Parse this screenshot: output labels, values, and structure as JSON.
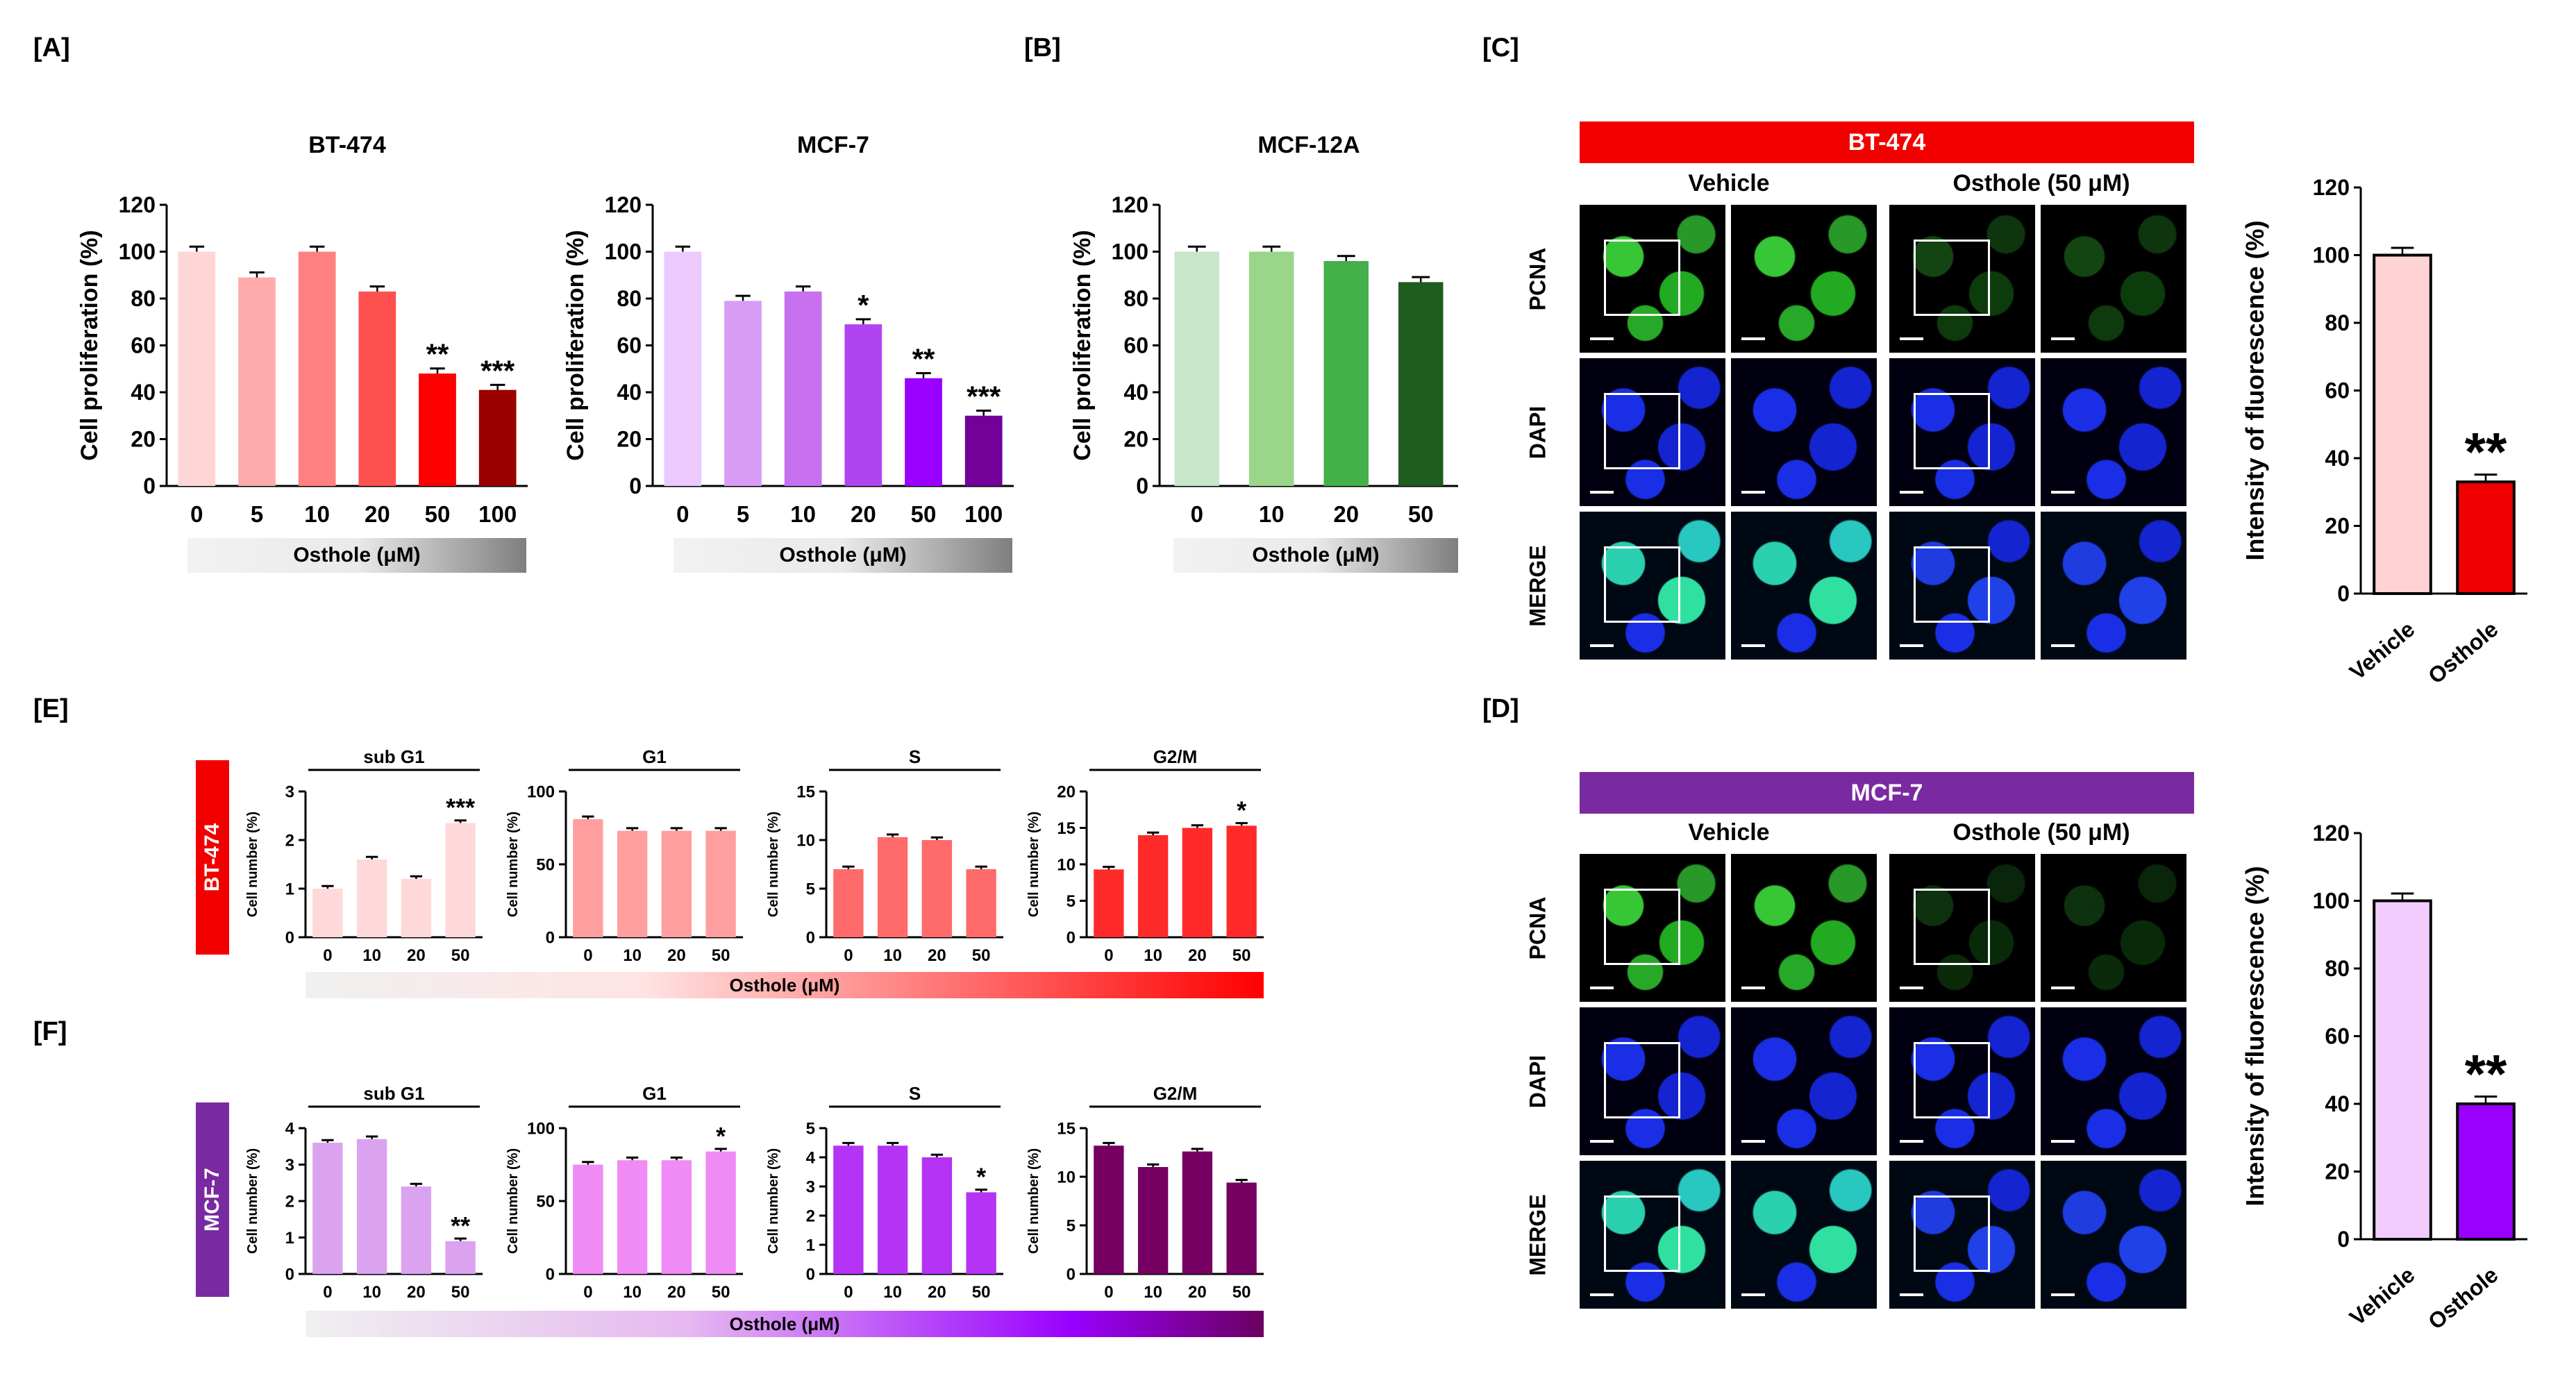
{
  "panels": {
    "A": "[A]",
    "B": "[B]",
    "C": "[C]",
    "D": "[D]",
    "E": "[E]",
    "F": "[F]"
  },
  "colors": {
    "bt474_banner": "#f20000",
    "mcf7_banner": "#7a2aa0",
    "bt474_bars": [
      "#ffd6d6",
      "#ffabab",
      "#ff8080",
      "#ff5050",
      "#ff0000",
      "#990000"
    ],
    "mcf7_bars": [
      "#ecc9ff",
      "#d99cf4",
      "#c770f0",
      "#b044f0",
      "#9900ff",
      "#730099"
    ],
    "mcf12a_bars": [
      "#c8e6c8",
      "#99d68a",
      "#44b04a",
      "#1f5c1f"
    ],
    "cycle_bt474": [
      "#ffd9d9",
      "#ff9e9e",
      "#ff6a6a",
      "#ff2a2a"
    ],
    "cycle_mcf7": [
      "#dba2f0",
      "#f08af5",
      "#b433f5",
      "#760062"
    ]
  },
  "chart_data": [
    {
      "id": "A-BT474",
      "type": "bar",
      "title": "BT-474",
      "ylabel": "Cell proliferation (%)",
      "xlabel": "Osthole (μM)",
      "categories": [
        "0",
        "5",
        "10",
        "20",
        "50",
        "100"
      ],
      "values": [
        100,
        89,
        100,
        83,
        48,
        41
      ],
      "significance": [
        "",
        "",
        "",
        "",
        "**",
        "***"
      ],
      "ylim": [
        0,
        120
      ],
      "yticks": [
        0,
        20,
        40,
        60,
        80,
        100,
        120
      ]
    },
    {
      "id": "A-MCF7",
      "type": "bar",
      "title": "MCF-7",
      "ylabel": "Cell proliferation (%)",
      "xlabel": "Osthole (μM)",
      "categories": [
        "0",
        "5",
        "10",
        "20",
        "50",
        "100"
      ],
      "values": [
        100,
        79,
        83,
        69,
        46,
        30
      ],
      "significance": [
        "",
        "",
        "",
        "*",
        "**",
        "***"
      ],
      "ylim": [
        0,
        120
      ],
      "yticks": [
        0,
        20,
        40,
        60,
        80,
        100,
        120
      ]
    },
    {
      "id": "B-MCF12A",
      "type": "bar",
      "title": "MCF-12A",
      "ylabel": "Cell proliferation (%)",
      "xlabel": "Osthole (μM)",
      "categories": [
        "0",
        "10",
        "20",
        "50"
      ],
      "values": [
        100,
        100,
        96,
        87
      ],
      "significance": [
        "",
        "",
        "",
        ""
      ],
      "ylim": [
        0,
        120
      ],
      "yticks": [
        0,
        20,
        40,
        60,
        80,
        100,
        120
      ]
    },
    {
      "id": "C-fluor",
      "type": "bar",
      "title": "",
      "ylabel": "Intensity of fluorescence (%)",
      "categories": [
        "Vehicle",
        "Osthole"
      ],
      "values": [
        100,
        33
      ],
      "significance": [
        "",
        "**"
      ],
      "ylim": [
        0,
        120
      ],
      "yticks": [
        0,
        20,
        40,
        60,
        80,
        100,
        120
      ]
    },
    {
      "id": "D-fluor",
      "type": "bar",
      "title": "",
      "ylabel": "Intensity of fluorescence (%)",
      "categories": [
        "Vehicle",
        "Osthole"
      ],
      "values": [
        100,
        40
      ],
      "significance": [
        "",
        "**"
      ],
      "ylim": [
        0,
        120
      ],
      "yticks": [
        0,
        20,
        40,
        60,
        80,
        100,
        120
      ]
    },
    {
      "id": "E-subG1",
      "type": "bar",
      "title": "sub G1",
      "ylabel": "Cell number (%)",
      "categories": [
        "0",
        "10",
        "20",
        "50"
      ],
      "values": [
        1.0,
        1.6,
        1.2,
        2.35
      ],
      "significance": [
        "",
        "",
        "",
        "***"
      ],
      "ylim": [
        0,
        3
      ],
      "yticks": [
        0,
        1,
        2,
        3
      ]
    },
    {
      "id": "E-G1",
      "type": "bar",
      "title": "G1",
      "ylabel": "Cell number (%)",
      "categories": [
        "0",
        "10",
        "20",
        "50"
      ],
      "values": [
        81,
        73,
        73,
        73
      ],
      "significance": [
        "",
        "",
        "",
        ""
      ],
      "ylim": [
        0,
        100
      ],
      "yticks": [
        0,
        50,
        100
      ]
    },
    {
      "id": "E-S",
      "type": "bar",
      "title": "S",
      "ylabel": "Cell number (%)",
      "categories": [
        "0",
        "10",
        "20",
        "50"
      ],
      "values": [
        7,
        10.3,
        10,
        7
      ],
      "significance": [
        "",
        "",
        "",
        ""
      ],
      "ylim": [
        0,
        15
      ],
      "yticks": [
        0,
        5,
        10,
        15
      ]
    },
    {
      "id": "E-G2M",
      "type": "bar",
      "title": "G2/M",
      "ylabel": "Cell number (%)",
      "categories": [
        "0",
        "10",
        "20",
        "50"
      ],
      "values": [
        9.3,
        14,
        15,
        15.3
      ],
      "significance": [
        "",
        "",
        "",
        "*"
      ],
      "ylim": [
        0,
        20
      ],
      "yticks": [
        0,
        5,
        10,
        15,
        20
      ]
    },
    {
      "id": "F-subG1",
      "type": "bar",
      "title": "sub G1",
      "ylabel": "Cell number (%)",
      "categories": [
        "0",
        "10",
        "20",
        "50"
      ],
      "values": [
        3.6,
        3.7,
        2.4,
        0.9
      ],
      "significance": [
        "",
        "",
        "",
        "**"
      ],
      "ylim": [
        0,
        4
      ],
      "yticks": [
        0,
        1,
        2,
        3,
        4
      ]
    },
    {
      "id": "F-G1",
      "type": "bar",
      "title": "G1",
      "ylabel": "Cell number (%)",
      "categories": [
        "0",
        "10",
        "20",
        "50"
      ],
      "values": [
        75,
        78,
        78,
        84
      ],
      "significance": [
        "",
        "",
        "",
        "*"
      ],
      "ylim": [
        0,
        100
      ],
      "yticks": [
        0,
        50,
        100
      ]
    },
    {
      "id": "F-S",
      "type": "bar",
      "title": "S",
      "ylabel": "Cell number (%)",
      "categories": [
        "0",
        "10",
        "20",
        "50"
      ],
      "values": [
        4.4,
        4.4,
        4.0,
        2.8
      ],
      "significance": [
        "",
        "",
        "",
        "*"
      ],
      "ylim": [
        0,
        5
      ],
      "yticks": [
        0,
        1,
        2,
        3,
        4,
        5
      ]
    },
    {
      "id": "F-G2M",
      "type": "bar",
      "title": "G2/M",
      "ylabel": "Cell number (%)",
      "categories": [
        "0",
        "10",
        "20",
        "50"
      ],
      "values": [
        13.2,
        11,
        12.6,
        9.4
      ],
      "significance": [
        "",
        "",
        "",
        ""
      ],
      "ylim": [
        0,
        15
      ],
      "yticks": [
        0,
        5,
        10,
        15
      ]
    }
  ],
  "panel_A": {
    "xlabel": "Osthole (μM)"
  },
  "panel_C": {
    "banner": "BT-474",
    "col_vehicle": "Vehicle",
    "col_osthole": "Osthole (50 μM)",
    "rows": [
      "PCNA",
      "DAPI",
      "MERGE"
    ]
  },
  "panel_D": {
    "banner": "MCF-7",
    "col_vehicle": "Vehicle",
    "col_osthole": "Osthole (50 μM)",
    "rows": [
      "PCNA",
      "DAPI",
      "MERGE"
    ]
  },
  "panel_E": {
    "side_label": "BT-474",
    "xlabel": "Osthole (μM)"
  },
  "panel_F": {
    "side_label": "MCF-7",
    "xlabel": "Osthole (μM)"
  }
}
